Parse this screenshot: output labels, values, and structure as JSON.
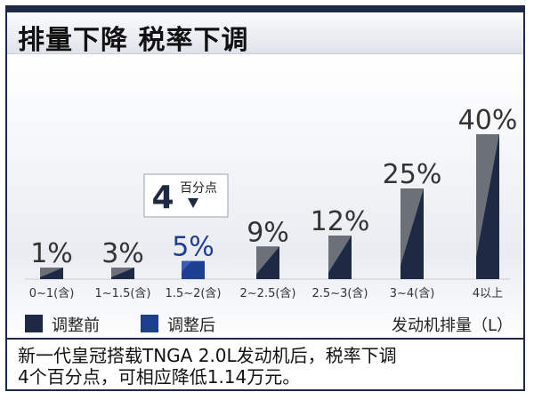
{
  "header": {
    "title": "排量下降  税率下调"
  },
  "chart_data": {
    "type": "bar",
    "categories": [
      "0~1(含)",
      "1~1.5(含)",
      "1.5~2(含)",
      "2~2.5(含)",
      "2.5~3(含)",
      "3~4(含)",
      "4以上"
    ],
    "value_labels": [
      "1%",
      "3%",
      "5%",
      "9%",
      "12%",
      "25%",
      "40%"
    ],
    "series": [
      {
        "name": "调整前",
        "values": [
          1,
          3,
          5,
          9,
          12,
          25,
          40
        ]
      },
      {
        "name": "调整后",
        "values": [
          1,
          3,
          5,
          9,
          12,
          25,
          40
        ]
      }
    ],
    "highlight_index": 2,
    "ylim": [
      0,
      40
    ],
    "grid": false,
    "colors": {
      "before": "#1e2a44",
      "after": "#1c3f94",
      "gray": "#6b7079"
    },
    "annotation": {
      "value": "4",
      "text": "百分点"
    }
  },
  "legend": {
    "items": [
      {
        "label": "调整前",
        "color": "#1e2a44"
      },
      {
        "label": "调整后",
        "color": "#1c3f94"
      }
    ],
    "unit_label": "发动机排量（L）"
  },
  "note": {
    "line1": "新一代皇冠搭载TNGA 2.0L发动机后，税率下调",
    "line2": "4个百分点，可相应降低1.14万元。"
  }
}
